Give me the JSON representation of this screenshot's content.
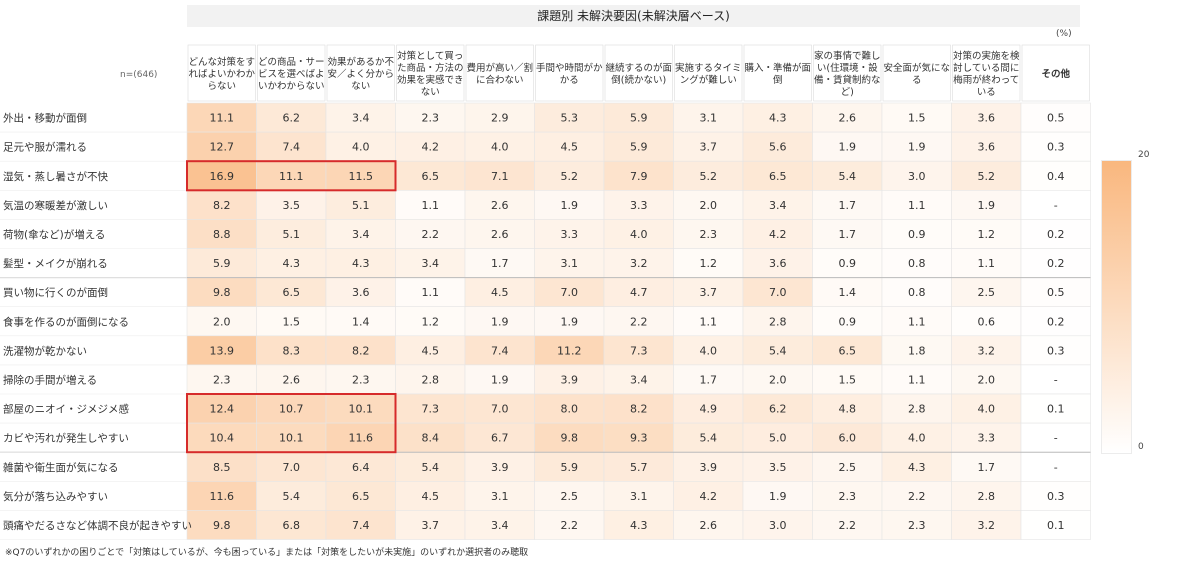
{
  "page": {
    "title": "課題別 未解決要因(未解決層ベース)",
    "unit": "(%)",
    "n_label": "n=(646)",
    "footnote": "※Q7のいずれかの困りごとで「対策はしているが、今も困っている」または「対策をしたいが未実施」のいずれか選択者のみ聴取"
  },
  "colors": {
    "high": "#f9b77e",
    "low": "#ffffff",
    "highlight_border": "#d62b2b",
    "grid": "#e5e5e5"
  },
  "chart_data": {
    "type": "heatmap",
    "title": "課題別 未解決要因(未解決層ベース)",
    "columns": [
      "どんな対策をすればよいかわからない",
      "どの商品・サービスを選べばよいかわからない",
      "効果があるか不安／よく分からない",
      "対策として買った商品・方法の効果を実感できない",
      "費用が高い／割に合わない",
      "手間や時間がかかる",
      "継続するのが面倒(続かない)",
      "実施するタイミングが難しい",
      "購入・準備が面倒",
      "家の事情で難しい(住環境・設備・賃貸制約など)",
      "安全面が気になる",
      "対策の実施を検討している間に梅雨が終わっている",
      "その他"
    ],
    "rows": [
      "外出・移動が面倒",
      "足元や服が濡れる",
      "湿気・蒸し暑さが不快",
      "気温の寒暖差が激しい",
      "荷物(傘など)が増える",
      "髪型・メイクが崩れる",
      "買い物に行くのが面倒",
      "食事を作るのが面倒になる",
      "洗濯物が乾かない",
      "掃除の手間が増える",
      "部屋のニオイ・ジメジメ感",
      "カビや汚れが発生しやすい",
      "雑菌や衛生面が気になる",
      "気分が落ち込みやすい",
      "頭痛やだるさなど体調不良が起きやすい"
    ],
    "values": [
      [
        "11.1",
        "6.2",
        "3.4",
        "2.3",
        "2.9",
        "5.3",
        "5.9",
        "3.1",
        "4.3",
        "2.6",
        "1.5",
        "3.6",
        "0.5"
      ],
      [
        "12.7",
        "7.4",
        "4.0",
        "4.2",
        "4.0",
        "4.5",
        "5.9",
        "3.7",
        "5.6",
        "1.9",
        "1.9",
        "3.6",
        "0.3"
      ],
      [
        "16.9",
        "11.1",
        "11.5",
        "6.5",
        "7.1",
        "5.2",
        "7.9",
        "5.2",
        "6.5",
        "5.4",
        "3.0",
        "5.2",
        "0.4"
      ],
      [
        "8.2",
        "3.5",
        "5.1",
        "1.1",
        "2.6",
        "1.9",
        "3.3",
        "2.0",
        "3.4",
        "1.7",
        "1.1",
        "1.9",
        "-"
      ],
      [
        "8.8",
        "5.1",
        "3.4",
        "2.2",
        "2.6",
        "3.3",
        "4.0",
        "2.3",
        "4.2",
        "1.7",
        "0.9",
        "1.2",
        "0.2"
      ],
      [
        "5.9",
        "4.3",
        "4.3",
        "3.4",
        "1.7",
        "3.1",
        "3.2",
        "1.2",
        "3.6",
        "0.9",
        "0.8",
        "1.1",
        "0.2"
      ],
      [
        "9.8",
        "6.5",
        "3.6",
        "1.1",
        "4.5",
        "7.0",
        "4.7",
        "3.7",
        "7.0",
        "1.4",
        "0.8",
        "2.5",
        "0.5"
      ],
      [
        "2.0",
        "1.5",
        "1.4",
        "1.2",
        "1.9",
        "1.9",
        "2.2",
        "1.1",
        "2.8",
        "0.9",
        "1.1",
        "0.6",
        "0.2"
      ],
      [
        "13.9",
        "8.3",
        "8.2",
        "4.5",
        "7.4",
        "11.2",
        "7.3",
        "4.0",
        "5.4",
        "6.5",
        "1.8",
        "3.2",
        "0.3"
      ],
      [
        "2.3",
        "2.6",
        "2.3",
        "2.8",
        "1.9",
        "3.9",
        "3.4",
        "1.7",
        "2.0",
        "1.5",
        "1.1",
        "2.0",
        "-"
      ],
      [
        "12.4",
        "10.7",
        "10.1",
        "7.3",
        "7.0",
        "8.0",
        "8.2",
        "4.9",
        "6.2",
        "4.8",
        "2.8",
        "4.0",
        "0.1"
      ],
      [
        "10.4",
        "10.1",
        "11.6",
        "8.4",
        "6.7",
        "9.8",
        "9.3",
        "5.4",
        "5.0",
        "6.0",
        "4.0",
        "3.3",
        "-"
      ],
      [
        "8.5",
        "7.0",
        "6.4",
        "5.4",
        "3.9",
        "5.9",
        "5.7",
        "3.9",
        "3.5",
        "2.5",
        "4.3",
        "1.7",
        "-"
      ],
      [
        "11.6",
        "5.4",
        "6.5",
        "4.5",
        "3.1",
        "2.5",
        "3.1",
        "4.2",
        "1.9",
        "2.3",
        "2.2",
        "2.8",
        "0.3"
      ],
      [
        "9.8",
        "6.8",
        "7.4",
        "3.7",
        "3.4",
        "2.2",
        "4.3",
        "2.6",
        "3.0",
        "2.2",
        "2.3",
        "3.2",
        "0.1"
      ]
    ],
    "color_scale": {
      "min": 0,
      "max": 20,
      "min_label": "0",
      "max_label": "20"
    },
    "highlights": [
      {
        "row_start": 2,
        "row_end": 2,
        "col_start": 0,
        "col_end": 2
      },
      {
        "row_start": 10,
        "row_end": 11,
        "col_start": 0,
        "col_end": 2
      }
    ]
  }
}
